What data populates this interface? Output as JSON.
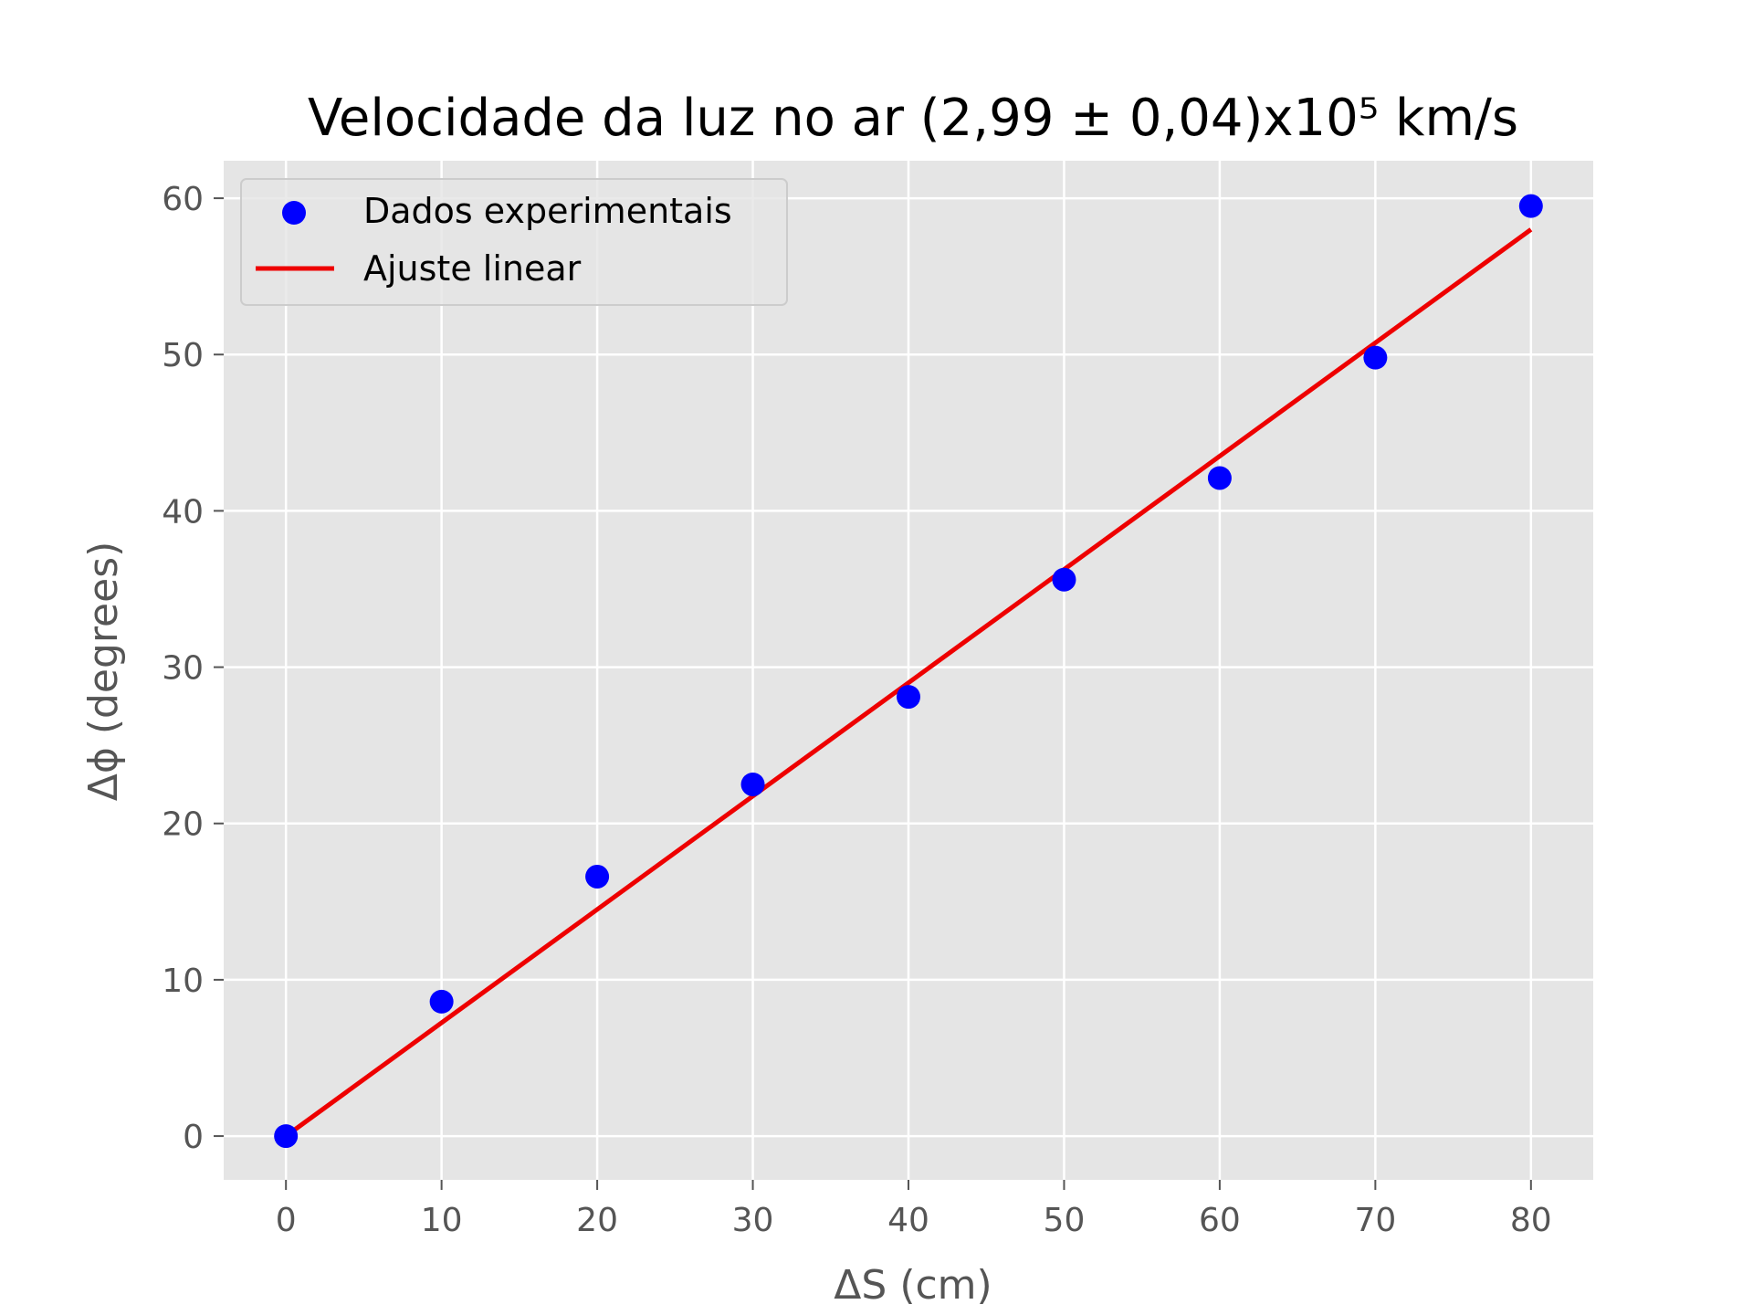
{
  "chart_data": {
    "type": "scatter",
    "title": "Velocidade da luz no ar (2,99 ± 0,04)x10⁵ km/s",
    "xlabel": "ΔS (cm)",
    "ylabel": "Δϕ (degrees)",
    "xlim": [
      -4,
      84
    ],
    "ylim": [
      -2.8,
      62.4
    ],
    "xticks": [
      "0",
      "10",
      "20",
      "30",
      "40",
      "50",
      "60",
      "70",
      "80"
    ],
    "yticks": [
      "0",
      "10",
      "20",
      "30",
      "40",
      "50",
      "60"
    ],
    "grid": true,
    "legend_position": "upper-left",
    "series": [
      {
        "name": "Dados experimentais",
        "kind": "scatter",
        "color": "#0000ff",
        "x": [
          0,
          10,
          20,
          30,
          40,
          50,
          60,
          70,
          80
        ],
        "y": [
          0,
          8.6,
          16.6,
          22.5,
          28.1,
          35.6,
          42.1,
          49.8,
          59.5
        ]
      },
      {
        "name": "Ajuste linear",
        "kind": "line",
        "color": "#ee0000",
        "x": [
          0,
          80
        ],
        "y": [
          0.0,
          58.0
        ]
      }
    ]
  }
}
